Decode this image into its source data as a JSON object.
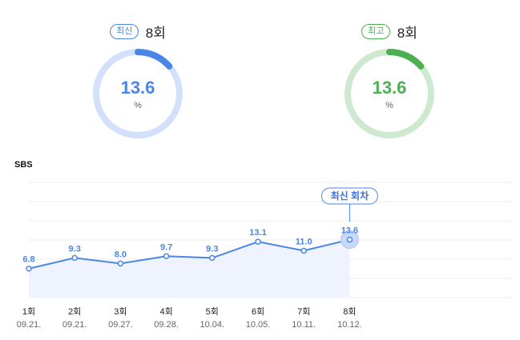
{
  "latest": {
    "badge": "최신",
    "episode": "8회",
    "value": "13.6",
    "unit": "%",
    "fraction": 0.136,
    "color": "#4a86e8",
    "track": "#d3e0fb"
  },
  "best": {
    "badge": "최고",
    "episode": "8회",
    "value": "13.6",
    "unit": "%",
    "fraction": 0.136,
    "color": "#4caf50",
    "track": "#cfe9d1"
  },
  "network": "SBS",
  "latest_tooltip": "최신 회차",
  "chart_data": {
    "type": "line",
    "categories": [
      "1회",
      "2회",
      "3회",
      "4회",
      "5회",
      "6회",
      "7회",
      "8회"
    ],
    "dates": [
      "09.21.",
      "09.21.",
      "09.27.",
      "09.28.",
      "10.04.",
      "10.05.",
      "10.11.",
      "10.12."
    ],
    "values": [
      6.8,
      9.3,
      8.0,
      9.7,
      9.3,
      13.1,
      11.0,
      13.6
    ],
    "value_labels": [
      "6.8",
      "9.3",
      "8.0",
      "9.7",
      "9.3",
      "13.1",
      "11.0",
      "13.6"
    ],
    "ylim": [
      0,
      27
    ],
    "grid": true,
    "color": "#4a86e8"
  }
}
